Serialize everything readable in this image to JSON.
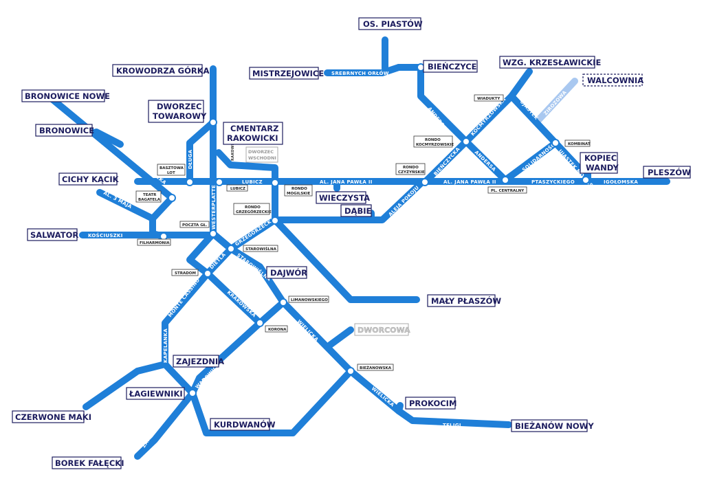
{
  "colors": {
    "track": "#1f7fd8",
    "track_planned": "#a9c8f0",
    "label_text": "#1c1c5e",
    "label_border": "#1c1c5e",
    "stop_stroke": "#1f7fd8"
  },
  "terminals": {
    "os_piastow": "OS. PIASTÓW",
    "bienczyce": "BIEŃCZYCE",
    "mistrzejowice": "MISTRZEJOWICE",
    "krowodrza_gorka": "KROWODRZA GÓRKA",
    "wzg_krzeslawickie": "WZG. KRZESŁAWICKIE",
    "walcownia": "WALCOWNIA",
    "bronowice_nowe": "BRONOWICE NOWE",
    "dworzec_towarowy_1": "DWORZEC",
    "dworzec_towarowy_2": "TOWAROWY",
    "cmentarz_rakowicki_1": "CMENTARZ",
    "cmentarz_rakowicki_2": "RAKOWICKI",
    "bronowice": "BRONOWICE",
    "kopiec_wandy_1": "KOPIEC",
    "kopiec_wandy_2": "WANDY",
    "pleszow": "PLESZÓW",
    "cichy_kacik": "CICHY KĄCIK",
    "wieczysta": "WIECZYSTA",
    "dabie": "DĄBIE",
    "salwator": "SALWATOR",
    "dajwor": "DAJWÓR",
    "maly_plaszow": "MAŁY PŁASZÓW",
    "dworcowa": "DWORCOWA",
    "zajezdnia": "ZAJEZDNIA",
    "lagiewniki": "ŁAGIEWNIKI",
    "czerwone_maki": "CZERWONE MAKI",
    "prokocim": "PROKOCIM",
    "kurdwanow": "KURDWANÓW",
    "biezanow_nowy": "BIEŻANÓW NOWY",
    "borek_falecki": "BOREK FAŁĘCKI"
  },
  "stops": {
    "wiadukty": "WIADUKTY",
    "rondo_kocmyrzowskie_1": "RONDO",
    "rondo_kocmyrzowskie_2": "KOCMYRZOWSKIE",
    "kombinat": "KOMBINAT",
    "rondo_czyzynskie_1": "RONDO",
    "rondo_czyzynskie_2": "CZYŻYŃSKIE",
    "pl_centralny": "PL. CENTRALNY",
    "basztowa_lot_1": "BASZTOWA",
    "basztowa_lot_2": "LOT",
    "teatr_bagatela_1": "TEATR",
    "teatr_bagatela_2": "BAGATELA",
    "lubicz": "LUBICZ",
    "rondo_mogilskie_1": "RONDO",
    "rondo_mogilskie_2": "MOGILSKIE",
    "rondo_grzegorzeckie_1": "RONDO",
    "rondo_grzegorzeckie_2": "GRZEGÓRZECKIE",
    "poczta_gl": "POCZTA GŁ.",
    "filharmonia": "FILHARMONIA",
    "starowislna": "STAROWIŚLNA",
    "stradom": "STRADOM",
    "limanowskiego": "LIMANOWSKIEGO",
    "korona": "KORONA",
    "biezanowska": "BIEŻANOWSKA",
    "dworzec_wschodni_1": "DWORZEC",
    "dworzec_wschodni_2": "WSCHODNI"
  },
  "streets": {
    "srebrnych_orlow": "SREBRNYCH ORŁÓW",
    "andersa": "ANDERSA",
    "kocmyrzowska": "KOCMYRZOWSKA",
    "ujastek": "UJASTEK",
    "zirozowa": "ZIROZOWA",
    "ujastek_mogilski": "UJASTEK MOGILSKI",
    "solidarnosci": "SOLIDARNOŚCI",
    "bienczycka": "BIEŃCZYCKA",
    "andersa2": "ANDERSA",
    "al_jana_pawla_1": "AL. JANA PAWŁA II",
    "al_jana_pawla_2": "AL. JANA PAWŁA II",
    "ptaszyckiego": "PTASZYCKIEGO",
    "igolomska": "IGOŁOMSKA",
    "aleja_pokoju": "ALEJA POKOJU",
    "balicka": "BALICKA",
    "karmelicka": "KARMELICKA",
    "dluga": "DŁUGA",
    "westerplatte": "WESTERPLATTE",
    "lubicz": "LUBICZ",
    "rakowicka": "RAKOWICKA",
    "al_3_maja": "AL. 3 MAJA",
    "kosciuszki": "KOŚCIUSZKI",
    "grzegorzecka": "GRZEGÓRZECKA",
    "starowislna": "STAROWIŚLNA",
    "dietla": "DIETLA",
    "krakowska": "KRAKOWSKA",
    "monte_cassino": "MONTE CASSINO",
    "kapelanka": "KAPELANKA",
    "kalwaryjska": "KALWARYJSKA",
    "wadowicka": "WADOWICKA",
    "wielicka_1": "WIELICKA",
    "wielicka_2": "WIELICKA",
    "zakopianska": "ZAKOPIAŃSKA",
    "teligi": "TELIGI"
  }
}
